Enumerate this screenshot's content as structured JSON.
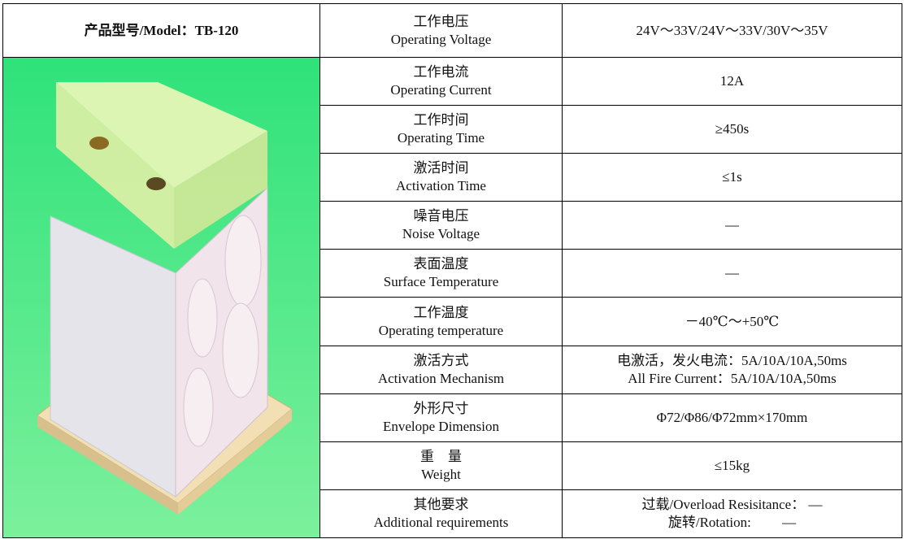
{
  "header": {
    "model": "产品型号/Model：TB-120"
  },
  "rows": [
    {
      "cn": "工作电压",
      "en": "Operating Voltage",
      "value": [
        "24V～33V/24V～33V/30V～35V"
      ]
    },
    {
      "cn": "工作电流",
      "en": "Operating Current",
      "value": [
        "12A"
      ]
    },
    {
      "cn": "工作时间",
      "en": "Operating Time",
      "value": [
        "≥450s"
      ]
    },
    {
      "cn": "激活时间",
      "en": "Activation Time",
      "value": [
        "≤1s"
      ]
    },
    {
      "cn": "噪音电压",
      "en": "Noise Voltage",
      "value": [
        "—"
      ]
    },
    {
      "cn": "表面温度",
      "en": "Surface Temperature",
      "value": [
        "—"
      ]
    },
    {
      "cn": "工作温度",
      "en": "Operating temperature",
      "value": [
        "－40℃～+50℃"
      ]
    },
    {
      "cn": "激活方式",
      "en": "Activation Mechanism",
      "value": [
        "电激活，发火电流：5A/10A/10A,50ms",
        "All Fire Current：5A/10A/10A,50ms"
      ]
    },
    {
      "cn": "外形尺寸",
      "en": "Envelope Dimension",
      "value": [
        "Φ72/Φ86/Φ72mm×170mm"
      ]
    },
    {
      "cn": "重　量",
      "en": "Weight",
      "value": [
        "≤15kg"
      ]
    },
    {
      "cn": "其他要求",
      "en": "Additional requirements",
      "value": [
        "过载/Overload Resisitance：  —",
        "旋转/Rotation:　　  —"
      ]
    }
  ]
}
